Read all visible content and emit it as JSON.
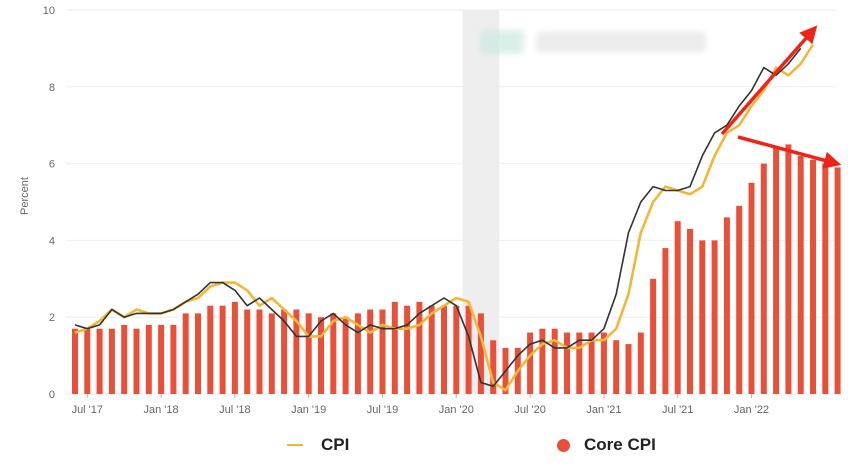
{
  "colors": {
    "cpi_line": "#f0b73a",
    "headline_dark_line": "#333333",
    "core_bar": "#e8503a",
    "recession_shade": "#eeeeee",
    "grid": "#eeeeee",
    "annotation_arrow": "#ee2418"
  },
  "legend": {
    "cpi_label": "CPI",
    "core_label": "Core CPI"
  },
  "chart_data": {
    "type": "bar",
    "title": "",
    "xlabel": "",
    "ylabel": "Percent",
    "ylim": [
      0,
      10
    ],
    "yticks": [
      0,
      2,
      4,
      6,
      8,
      10
    ],
    "grid": true,
    "legend_position": "bottom",
    "x_start_month": "2017-06",
    "x_tick_labels": [
      "Jul '17",
      "Jan '18",
      "Jul '18",
      "Jan '19",
      "Jul '19",
      "Jan '20",
      "Jul '20",
      "Jan '21",
      "Jul '21",
      "Jan '22"
    ],
    "x_tick_dates": [
      "2017-07",
      "2018-01",
      "2018-07",
      "2019-01",
      "2019-07",
      "2020-01",
      "2020-07",
      "2021-01",
      "2021-07",
      "2022-01"
    ],
    "recession_shading": [
      "2020-02",
      "2020-04"
    ],
    "series": [
      {
        "name": "Core CPI",
        "type": "bar",
        "values": [
          1.7,
          1.7,
          1.7,
          1.7,
          1.8,
          1.7,
          1.8,
          1.8,
          1.8,
          2.1,
          2.1,
          2.3,
          2.3,
          2.4,
          2.2,
          2.2,
          2.1,
          2.2,
          2.2,
          2.1,
          2.0,
          2.1,
          2.0,
          2.1,
          2.2,
          2.2,
          2.4,
          2.3,
          2.4,
          2.3,
          2.3,
          2.3,
          2.3,
          2.1,
          1.4,
          1.2,
          1.2,
          1.6,
          1.7,
          1.7,
          1.6,
          1.6,
          1.6,
          1.6,
          1.4,
          1.3,
          1.6,
          3.0,
          3.8,
          4.5,
          4.3,
          4.0,
          4.0,
          4.6,
          4.9,
          5.5,
          6.0,
          6.4,
          6.5,
          6.2,
          6.1,
          6.0,
          5.9
        ]
      },
      {
        "name": "CPI",
        "type": "line",
        "values": [
          1.6,
          1.7,
          1.9,
          2.2,
          2.0,
          2.2,
          2.1,
          2.1,
          2.2,
          2.4,
          2.5,
          2.8,
          2.9,
          2.9,
          2.7,
          2.3,
          2.5,
          2.2,
          1.9,
          1.5,
          1.5,
          1.9,
          2.0,
          1.8,
          1.6,
          1.8,
          1.7,
          1.7,
          1.8,
          2.1,
          2.3,
          2.5,
          2.4,
          1.5,
          0.3,
          0.1,
          0.6,
          1.0,
          1.3,
          1.4,
          1.2,
          1.2,
          1.4,
          1.4,
          1.7,
          2.6,
          4.2,
          5.0,
          5.4,
          5.3,
          5.2,
          5.4,
          6.2,
          6.8,
          7.0,
          7.5,
          7.9,
          8.5,
          8.3,
          8.6,
          9.1
        ]
      },
      {
        "type": "line",
        "values": [
          1.8,
          1.7,
          1.8,
          2.2,
          2.0,
          2.1,
          2.1,
          2.1,
          2.2,
          2.4,
          2.6,
          2.9,
          2.9,
          2.7,
          2.3,
          2.5,
          2.2,
          1.9,
          1.5,
          1.5,
          1.9,
          2.1,
          1.8,
          1.6,
          1.8,
          1.7,
          1.7,
          1.8,
          2.1,
          2.3,
          2.5,
          2.3,
          1.5,
          0.3,
          0.2,
          0.6,
          1.0,
          1.3,
          1.4,
          1.2,
          1.2,
          1.4,
          1.4,
          1.7,
          2.6,
          4.2,
          5.0,
          5.4,
          5.3,
          5.3,
          5.4,
          6.2,
          6.8,
          7.0,
          7.5,
          7.9,
          8.5,
          8.3,
          8.6,
          9.0
        ]
      }
    ]
  }
}
